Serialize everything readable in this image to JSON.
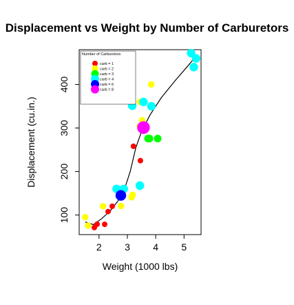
{
  "chart_data": {
    "type": "scatter",
    "title": "Displacement vs Weight by Number of Carburetors",
    "xlabel": "Weight (1000 lbs)",
    "ylabel": "Displacement (cu.in.)",
    "xlim": [
      1.3,
      5.6
    ],
    "ylim": [
      55,
      480
    ],
    "x_ticks": [
      2,
      3,
      4,
      5
    ],
    "y_ticks": [
      100,
      200,
      300,
      400
    ],
    "legend": {
      "title": "Number of Carburetors",
      "position": "top-left",
      "entries": [
        {
          "label": "carb = 1",
          "color": "#ff0000"
        },
        {
          "label": "carb = 2",
          "color": "#ffff00"
        },
        {
          "label": "carb = 3",
          "color": "#00ff00"
        },
        {
          "label": "carb = 4",
          "color": "#00ffff"
        },
        {
          "label": "carb = 6",
          "color": "#0000ff"
        },
        {
          "label": "carb = 8",
          "color": "#ff00ff"
        }
      ]
    },
    "series": [
      {
        "color": "#ff0000",
        "size": 1,
        "points": [
          [
            2.32,
            108
          ],
          [
            3.215,
            258
          ],
          [
            3.46,
            225
          ],
          [
            2.2,
            78.7
          ],
          [
            1.935,
            79
          ],
          [
            2.465,
            120.1
          ],
          [
            1.835,
            71.1
          ]
        ]
      },
      {
        "color": "#ffff00",
        "size": 2,
        "points": [
          [
            3.44,
            360
          ],
          [
            3.19,
            146.7
          ],
          [
            3.15,
            140.8
          ],
          [
            3.52,
            318
          ],
          [
            3.435,
            304
          ],
          [
            3.84,
            400
          ],
          [
            1.615,
            75.7
          ],
          [
            2.14,
            120.3
          ],
          [
            1.513,
            95.1
          ],
          [
            2.78,
            121
          ]
        ]
      },
      {
        "color": "#00ff00",
        "size": 3,
        "points": [
          [
            4.07,
            275.8
          ],
          [
            3.73,
            275.8
          ],
          [
            3.78,
            275.8
          ]
        ]
      },
      {
        "color": "#00ffff",
        "size": 4,
        "points": [
          [
            2.62,
            160
          ],
          [
            2.875,
            160
          ],
          [
            3.57,
            360
          ],
          [
            3.44,
            167.6
          ],
          [
            3.44,
            167.6
          ],
          [
            5.25,
            472
          ],
          [
            5.424,
            460
          ],
          [
            5.345,
            440
          ],
          [
            3.845,
            350
          ],
          [
            3.17,
            351
          ]
        ]
      },
      {
        "color": "#0000ff",
        "size": 6,
        "points": [
          [
            2.77,
            145
          ]
        ]
      },
      {
        "color": "#ff00ff",
        "size": 8,
        "points": [
          [
            3.57,
            301
          ]
        ]
      }
    ],
    "smooth_line": {
      "color": "#000000",
      "points": [
        [
          1.513,
          84
        ],
        [
          1.8,
          78
        ],
        [
          2.1,
          92
        ],
        [
          2.4,
          110
        ],
        [
          2.7,
          135
        ],
        [
          2.9,
          160
        ],
        [
          3.1,
          200
        ],
        [
          3.3,
          255
        ],
        [
          3.5,
          292
        ],
        [
          3.8,
          330
        ],
        [
          4.2,
          370
        ],
        [
          4.7,
          410
        ],
        [
          5.1,
          440
        ],
        [
          5.424,
          465
        ]
      ]
    }
  }
}
